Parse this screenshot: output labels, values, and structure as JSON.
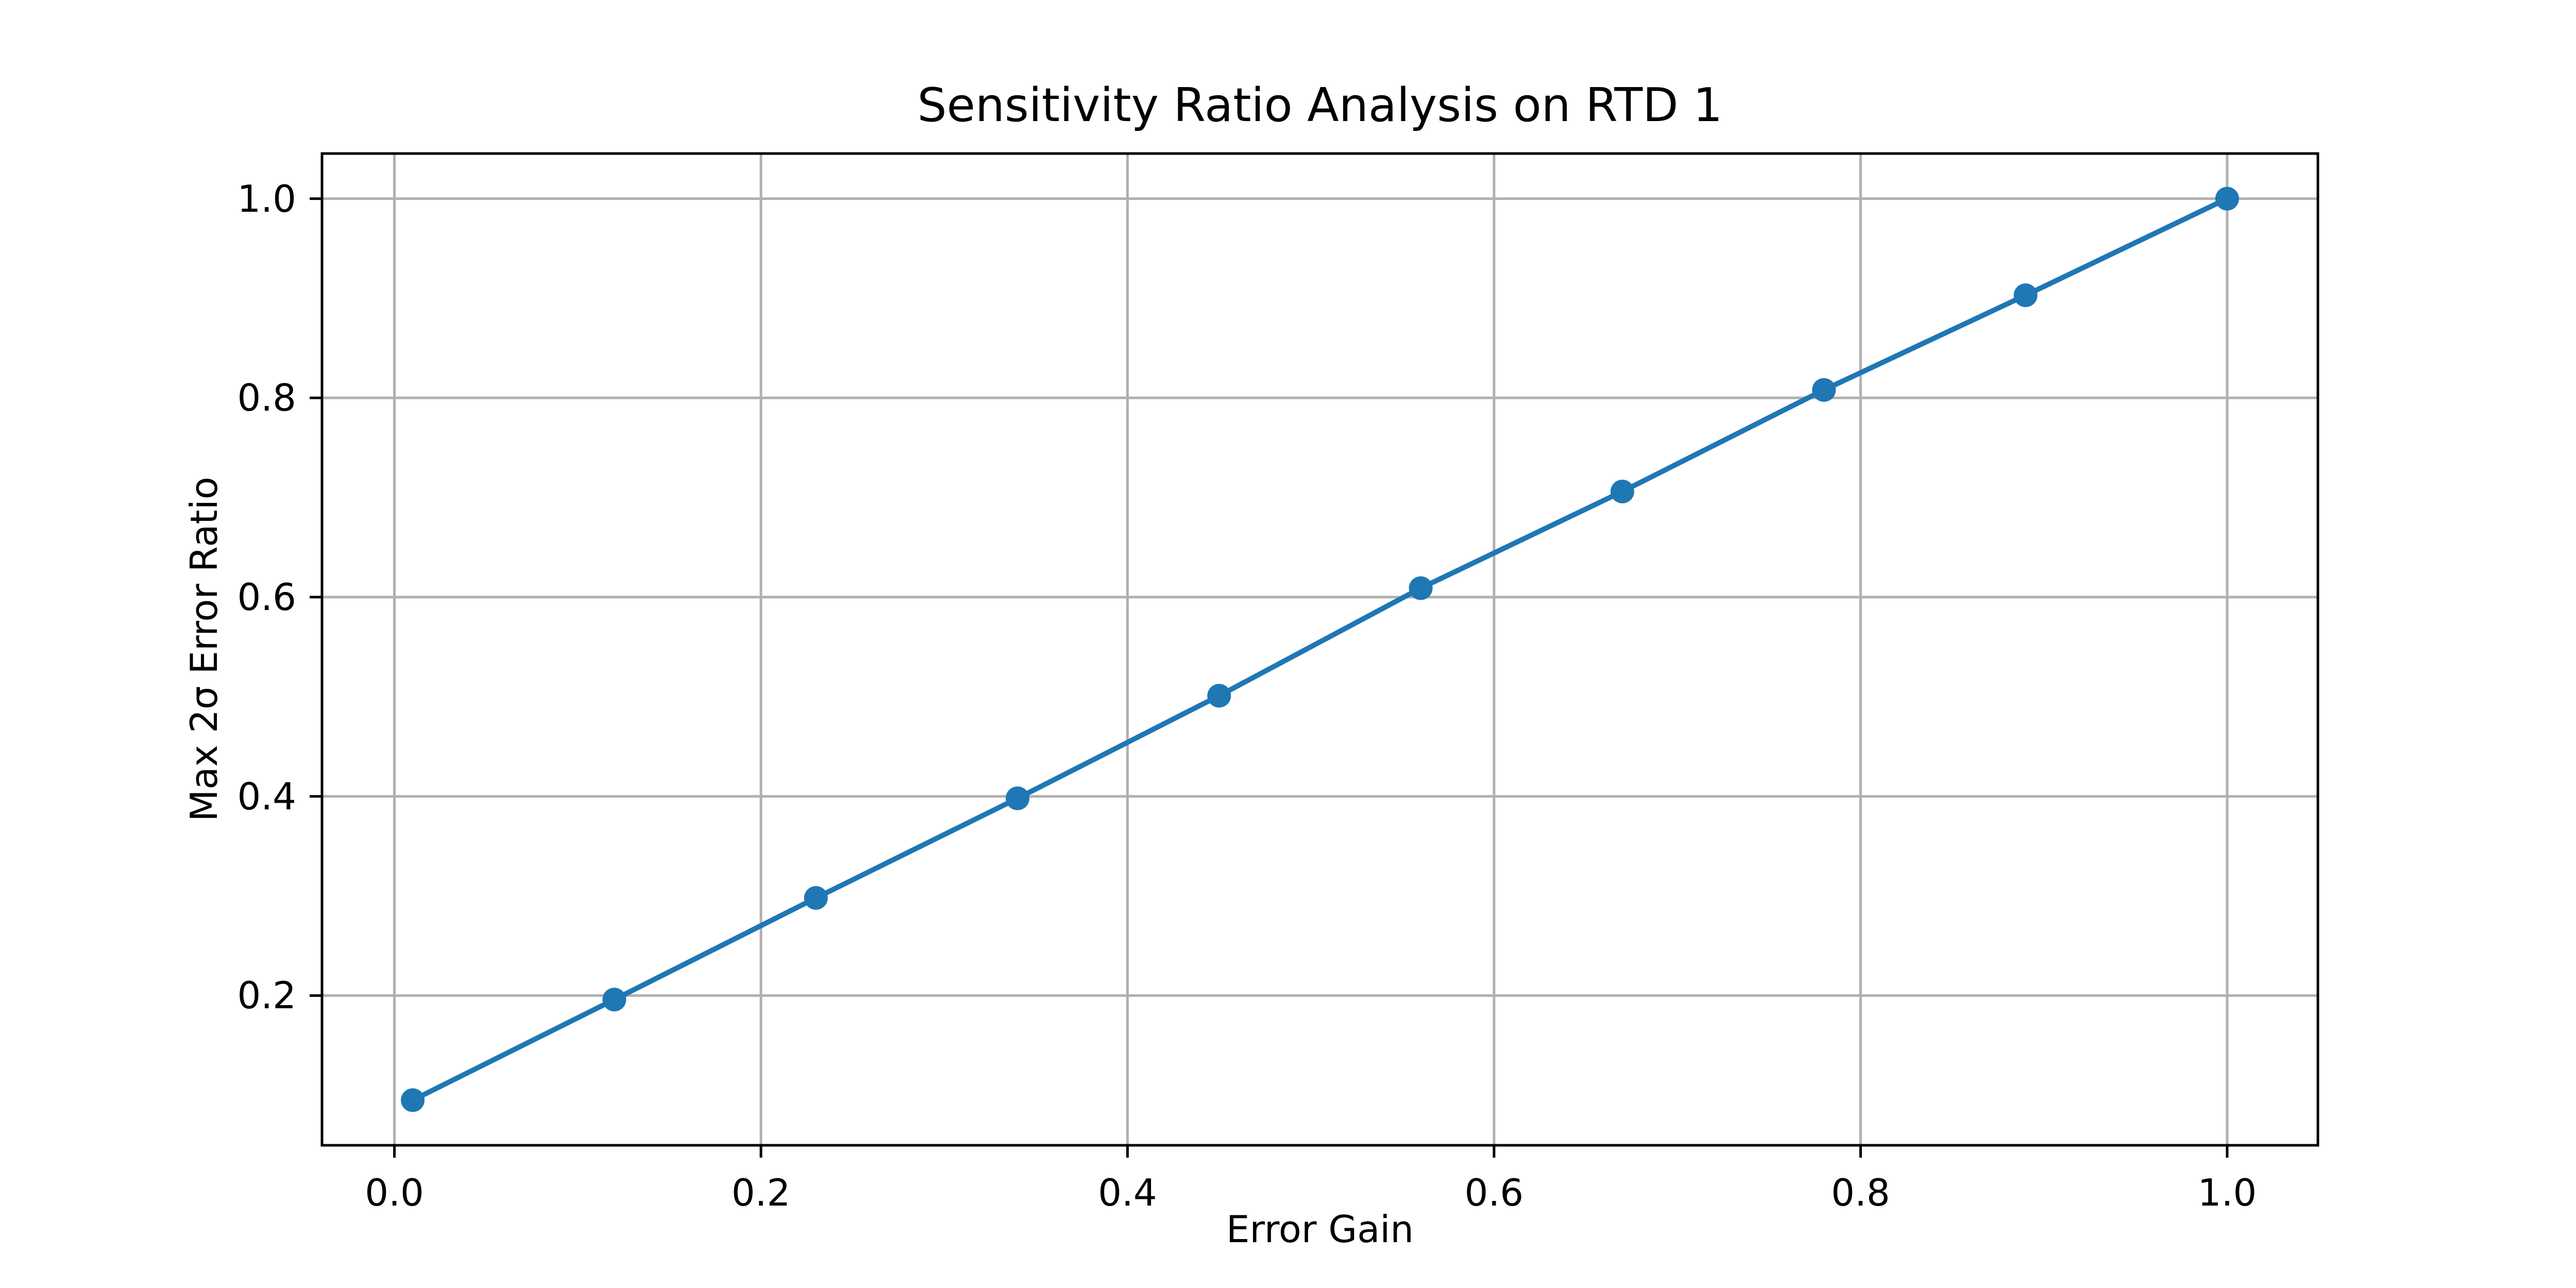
{
  "figure": {
    "background_color": "#ffffff",
    "text_color": "#000000"
  },
  "chart_data": {
    "type": "line",
    "title": "Sensitivity Ratio Analysis on RTD 1",
    "xlabel": "Error Gain",
    "ylabel": "Max 2σ Error Ratio",
    "series": [
      {
        "name": "sensitivity-ratio",
        "x": [
          0.01,
          0.12,
          0.23,
          0.34,
          0.45,
          0.56,
          0.67,
          0.78,
          0.89,
          1.0
        ],
        "y": [
          0.095,
          0.196,
          0.298,
          0.398,
          0.501,
          0.609,
          0.706,
          0.808,
          0.903,
          1.0
        ],
        "line_color": "#1f77b4",
        "marker": "o",
        "marker_color": "#1f77b4"
      }
    ],
    "xlim": [
      -0.0395,
      1.0495
    ],
    "ylim": [
      0.0497,
      1.0453
    ],
    "x_ticks": {
      "values": [
        0.0,
        0.2,
        0.4,
        0.6,
        0.8,
        1.0
      ],
      "labels": [
        "0.0",
        "0.2",
        "0.4",
        "0.6",
        "0.8",
        "1.0"
      ]
    },
    "y_ticks": {
      "values": [
        0.2,
        0.4,
        0.6,
        0.8,
        1.0
      ],
      "labels": [
        "0.2",
        "0.4",
        "0.6",
        "0.8",
        "1.0"
      ]
    },
    "grid": true,
    "grid_color": "#b0b0b0",
    "spine_color": "#000000",
    "legend": "none"
  }
}
